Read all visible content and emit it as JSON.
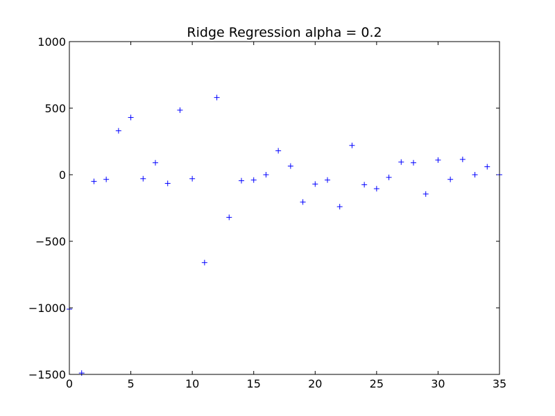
{
  "chart_data": {
    "type": "scatter",
    "title": "Ridge Regression alpha = 0.2",
    "xlabel": "",
    "ylabel": "",
    "xlim": [
      0,
      35
    ],
    "ylim": [
      -1500,
      1000
    ],
    "x_ticks": [
      0,
      5,
      10,
      15,
      20,
      25,
      30,
      35
    ],
    "y_ticks": [
      -1500,
      -1000,
      -500,
      0,
      500,
      1000
    ],
    "x_tick_labels": [
      "0",
      "5",
      "10",
      "15",
      "20",
      "25",
      "30",
      "35"
    ],
    "y_tick_labels": [
      "−1500",
      "−1000",
      "−500",
      "0",
      "500",
      "1000"
    ],
    "marker": "+",
    "marker_color": "#0000ff",
    "grid": false,
    "points": [
      {
        "x": 0,
        "y": -1010
      },
      {
        "x": 1,
        "y": -1490
      },
      {
        "x": 2,
        "y": -50
      },
      {
        "x": 3,
        "y": -35
      },
      {
        "x": 4,
        "y": 330
      },
      {
        "x": 5,
        "y": 430
      },
      {
        "x": 6,
        "y": -30
      },
      {
        "x": 7,
        "y": 90
      },
      {
        "x": 8,
        "y": -65
      },
      {
        "x": 9,
        "y": 485
      },
      {
        "x": 10,
        "y": -30
      },
      {
        "x": 11,
        "y": -660
      },
      {
        "x": 12,
        "y": 580
      },
      {
        "x": 13,
        "y": -320
      },
      {
        "x": 14,
        "y": -45
      },
      {
        "x": 15,
        "y": -40
      },
      {
        "x": 16,
        "y": 0
      },
      {
        "x": 17,
        "y": 180
      },
      {
        "x": 18,
        "y": 65
      },
      {
        "x": 19,
        "y": -205
      },
      {
        "x": 20,
        "y": -70
      },
      {
        "x": 21,
        "y": -40
      },
      {
        "x": 22,
        "y": -240
      },
      {
        "x": 23,
        "y": 220
      },
      {
        "x": 24,
        "y": -75
      },
      {
        "x": 25,
        "y": -105
      },
      {
        "x": 26,
        "y": -20
      },
      {
        "x": 27,
        "y": 95
      },
      {
        "x": 28,
        "y": 90
      },
      {
        "x": 29,
        "y": -145
      },
      {
        "x": 30,
        "y": 110
      },
      {
        "x": 31,
        "y": -35
      },
      {
        "x": 32,
        "y": 115
      },
      {
        "x": 33,
        "y": 0
      },
      {
        "x": 34,
        "y": 60
      },
      {
        "x": 35,
        "y": 0
      }
    ]
  }
}
